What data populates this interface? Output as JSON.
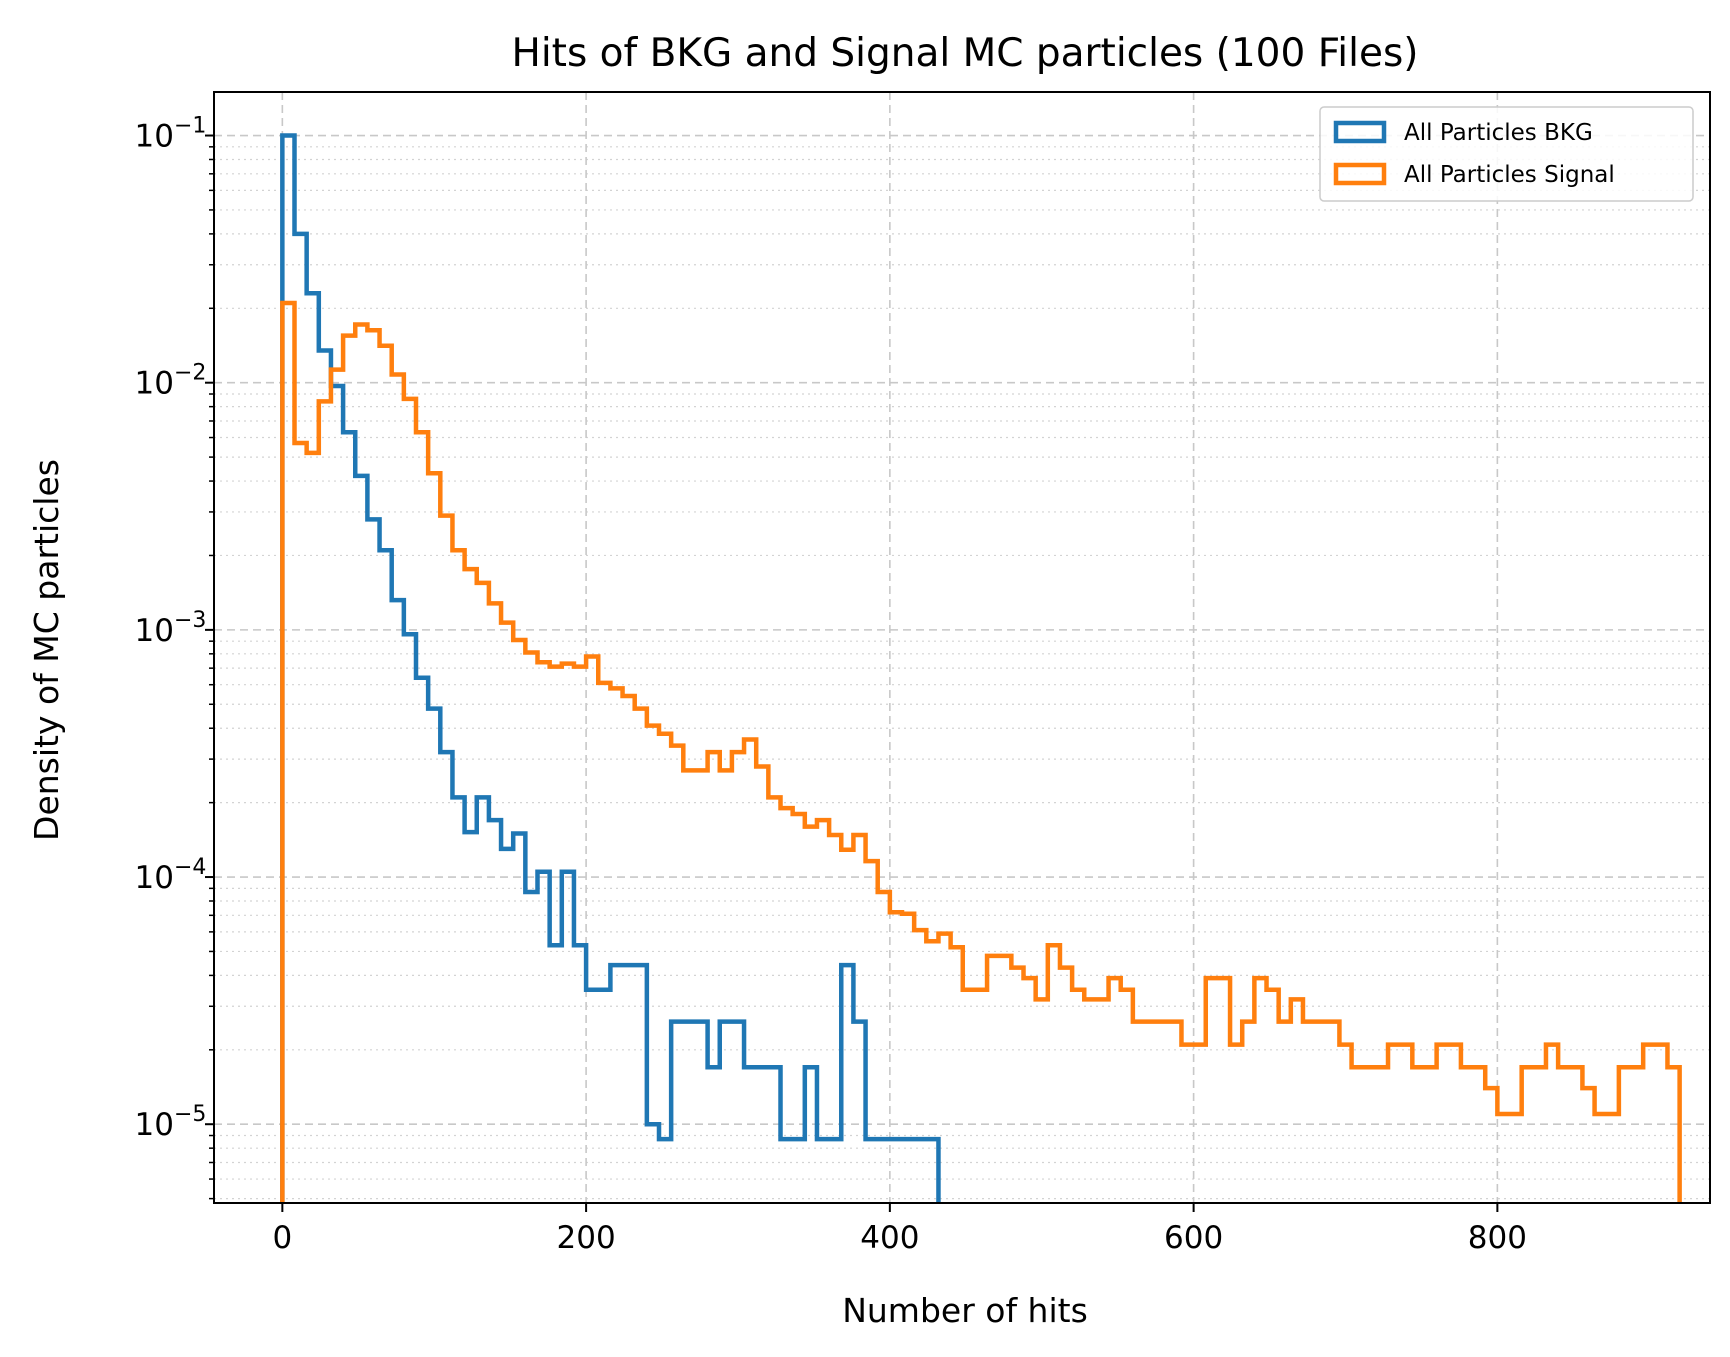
{
  "chart_data": {
    "type": "line",
    "style": "step-histogram",
    "title": "Hits of BKG and Signal MC particles (100 Files)",
    "xlabel": "Number of hits",
    "ylabel": "Density of MC particles",
    "xlim": [
      -45,
      940
    ],
    "ylim": [
      4.8e-06,
      0.15
    ],
    "yscale": "log",
    "grid": true,
    "legend": "top-right",
    "xticks": [
      {
        "value": 0,
        "label": "0"
      },
      {
        "value": 200,
        "label": "200"
      },
      {
        "value": 400,
        "label": "400"
      },
      {
        "value": 600,
        "label": "600"
      },
      {
        "value": 800,
        "label": "800"
      }
    ],
    "yticks": [
      {
        "value": 0.1,
        "base": "10",
        "exp": "−1"
      },
      {
        "value": 0.01,
        "base": "10",
        "exp": "−2"
      },
      {
        "value": 0.001,
        "base": "10",
        "exp": "−3"
      },
      {
        "value": 0.0001,
        "base": "10",
        "exp": "−4"
      },
      {
        "value": 1e-05,
        "base": "10",
        "exp": "−5"
      }
    ],
    "series": [
      {
        "name": "All Particles BKG",
        "color": "#1f77b4",
        "bin_start": 0,
        "bin_width": 8,
        "values": [
          0.1,
          0.04,
          0.023,
          0.0135,
          0.0097,
          0.0063,
          0.0042,
          0.0028,
          0.0021,
          0.00132,
          0.00096,
          0.00064,
          0.00048,
          0.00032,
          0.00021,
          0.000152,
          0.00021,
          0.00017,
          0.00013,
          0.00015,
          8.7e-05,
          0.000105,
          5.3e-05,
          0.000105,
          5.3e-05,
          3.5e-05,
          3.5e-05,
          4.4e-05,
          4.4e-05,
          4.4e-05,
          1e-05,
          8.7e-06,
          2.6e-05,
          2.6e-05,
          2.6e-05,
          1.7e-05,
          2.6e-05,
          2.6e-05,
          1.7e-05,
          1.7e-05,
          1.7e-05,
          8.7e-06,
          8.7e-06,
          1.7e-05,
          8.7e-06,
          8.7e-06,
          4.4e-05,
          2.6e-05,
          8.7e-06,
          8.7e-06,
          8.7e-06,
          8.7e-06,
          8.7e-06,
          8.7e-06
        ]
      },
      {
        "name": "All Particles Signal",
        "color": "#ff7f0e",
        "bin_start": 0,
        "bin_width": 8,
        "values": [
          0.021,
          0.0057,
          0.0052,
          0.0084,
          0.0113,
          0.0155,
          0.0172,
          0.0163,
          0.0141,
          0.0108,
          0.0086,
          0.0063,
          0.0043,
          0.0029,
          0.0021,
          0.00176,
          0.00155,
          0.00128,
          0.00107,
          0.00091,
          0.00081,
          0.00074,
          0.00071,
          0.00073,
          0.00071,
          0.00078,
          0.00061,
          0.00058,
          0.00054,
          0.00048,
          0.00041,
          0.00038,
          0.00034,
          0.00027,
          0.00027,
          0.00032,
          0.00027,
          0.00032,
          0.00036,
          0.00028,
          0.00021,
          0.00019,
          0.00018,
          0.00016,
          0.00017,
          0.000148,
          0.000129,
          0.000148,
          0.000116,
          8.7e-05,
          7.2e-05,
          7.1e-05,
          6.1e-05,
          5.5e-05,
          5.9e-05,
          5.2e-05,
          3.5e-05,
          3.5e-05,
          4.8e-05,
          4.8e-05,
          4.3e-05,
          3.9e-05,
          3.2e-05,
          5.3e-05,
          4.3e-05,
          3.5e-05,
          3.2e-05,
          3.2e-05,
          3.9e-05,
          3.5e-05,
          2.6e-05,
          2.6e-05,
          2.6e-05,
          2.6e-05,
          2.1e-05,
          2.1e-05,
          3.9e-05,
          3.9e-05,
          2.1e-05,
          2.6e-05,
          3.9e-05,
          3.5e-05,
          2.6e-05,
          3.2e-05,
          2.6e-05,
          2.6e-05,
          2.6e-05,
          2.1e-05,
          1.7e-05,
          1.7e-05,
          1.7e-05,
          2.1e-05,
          2.1e-05,
          1.7e-05,
          1.7e-05,
          2.1e-05,
          2.1e-05,
          1.7e-05,
          1.7e-05,
          1.4e-05,
          1.1e-05,
          1.1e-05,
          1.7e-05,
          1.7e-05,
          2.1e-05,
          1.7e-05,
          1.7e-05,
          1.4e-05,
          1.1e-05,
          1.1e-05,
          1.7e-05,
          1.7e-05,
          2.1e-05,
          2.1e-05,
          1.7e-05
        ]
      }
    ]
  }
}
